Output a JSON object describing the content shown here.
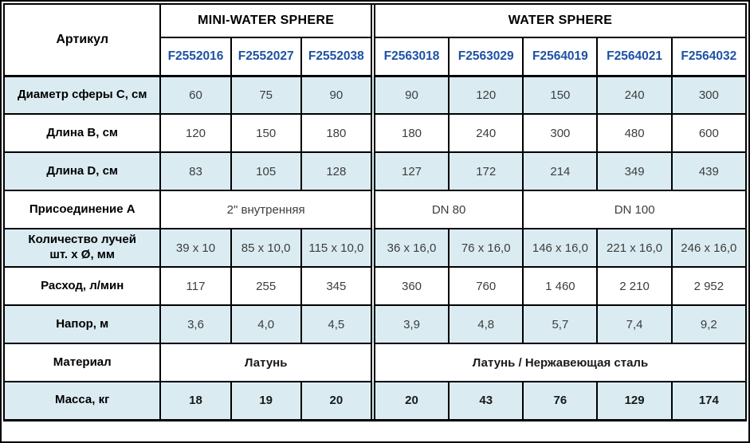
{
  "header": {
    "article_label": "Артикул",
    "groups": [
      {
        "name": "MINI-WATER SPHERE",
        "articles": [
          "F2552016",
          "F2552027",
          "F2552038"
        ]
      },
      {
        "name": "WATER SPHERE",
        "articles": [
          "F2563018",
          "F2563029",
          "F2564019",
          "F2564021",
          "F2564032"
        ]
      }
    ]
  },
  "rows": [
    {
      "label": "Диаметр сферы С, см",
      "values": [
        "60",
        "75",
        "90",
        "90",
        "120",
        "150",
        "240",
        "300"
      ]
    },
    {
      "label": "Длина В, см",
      "values": [
        "120",
        "150",
        "180",
        "180",
        "240",
        "300",
        "480",
        "600"
      ]
    },
    {
      "label": "Длина D, см",
      "values": [
        "83",
        "105",
        "128",
        "127",
        "172",
        "214",
        "349",
        "439"
      ]
    },
    {
      "label": "Присоединение А",
      "merged": [
        {
          "text": "2\" внутренняя",
          "span": 3
        },
        {
          "text": "DN 80",
          "span": 2
        },
        {
          "text": "DN 100",
          "span": 3
        }
      ]
    },
    {
      "label": "Количество лучей",
      "label2": "шт. х Ø, мм",
      "values": [
        "39 x 10",
        "85 x 10,0",
        "115 x 10,0",
        "36 x 16,0",
        "76 x 16,0",
        "146 x 16,0",
        "221 x 16,0",
        "246 x 16,0"
      ]
    },
    {
      "label": "Расход, л/мин",
      "values": [
        "117",
        "255",
        "345",
        "360",
        "760",
        "1 460",
        "2 210",
        "2 952"
      ]
    },
    {
      "label": "Напор, м",
      "values": [
        "3,6",
        "4,0",
        "4,5",
        "3,9",
        "4,8",
        "5,7",
        "7,4",
        "9,2"
      ]
    },
    {
      "label": "Материал",
      "merged": [
        {
          "text": "Латунь",
          "span": 3
        },
        {
          "text": "Латунь / Нержавеющая сталь",
          "span": 5
        }
      ]
    },
    {
      "label": "Масса, кг",
      "values": [
        "18",
        "19",
        "20",
        "20",
        "43",
        "76",
        "129",
        "174"
      ]
    }
  ],
  "colors": {
    "article_text": "#1d52a5",
    "shaded_row_bg": "#daecf2",
    "border": "#000000",
    "value_text": "#3d3d3d"
  }
}
